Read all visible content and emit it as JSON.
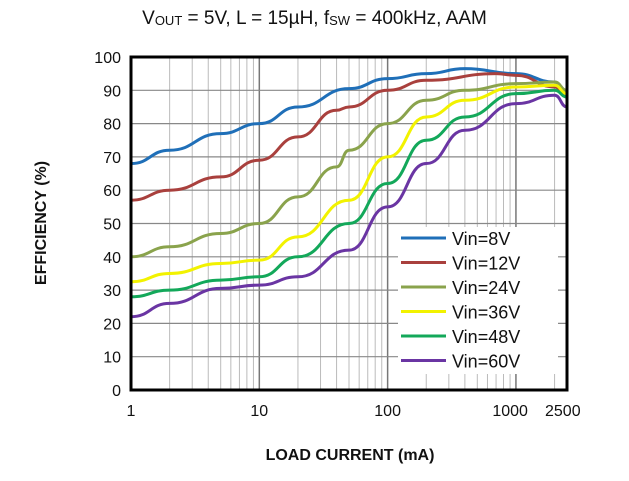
{
  "chart_data": {
    "type": "line",
    "title": {
      "v": "V",
      "v_sub": "OUT",
      "part1": " = 5V, L = 15µH, f",
      "f_sub": "SW",
      "part2": " = 400kHz, AAM"
    },
    "xlabel": "LOAD CURRENT  (mA)",
    "ylabel": "EFFICIENCY  (%)",
    "x_scale": "log",
    "xlim": [
      1,
      2500
    ],
    "ylim": [
      0,
      100
    ],
    "grid": true,
    "legend_position": "bottom-right",
    "x_ticks": [
      {
        "v": 1,
        "label": "1"
      },
      {
        "v": 10,
        "label": "10"
      },
      {
        "v": 100,
        "label": "100"
      },
      {
        "v": 1000,
        "label": "1000"
      },
      {
        "v": 2500,
        "label": "2500"
      }
    ],
    "y_ticks": [
      0,
      10,
      20,
      30,
      40,
      50,
      60,
      70,
      80,
      90,
      100
    ],
    "series": [
      {
        "name": "Vin=8V",
        "color": "#1f6fb8",
        "x": [
          1,
          2,
          5,
          10,
          20,
          50,
          100,
          200,
          400,
          1000,
          2000,
          2500
        ],
        "y": [
          68,
          72,
          77,
          80,
          85,
          90.5,
          93.5,
          95,
          96.5,
          95,
          92.5,
          89
        ]
      },
      {
        "name": "Vin=12V",
        "color": "#a9403d",
        "x": [
          1,
          2,
          5,
          10,
          20,
          40,
          50,
          100,
          200,
          700,
          1000,
          2000,
          2500
        ],
        "y": [
          57,
          60,
          64,
          69,
          76,
          84,
          85,
          90,
          93,
          95,
          94.5,
          91,
          88
        ]
      },
      {
        "name": "Vin=24V",
        "color": "#8aa34c",
        "x": [
          1,
          2,
          5,
          10,
          20,
          40,
          50,
          100,
          200,
          400,
          1000,
          2000,
          2500
        ],
        "y": [
          40,
          43,
          47,
          50,
          58,
          67,
          72,
          80,
          87,
          90,
          92,
          92.5,
          90
        ]
      },
      {
        "name": "Vin=36V",
        "color": "#f2f200",
        "x": [
          1,
          2,
          5,
          10,
          20,
          50,
          100,
          200,
          400,
          1000,
          2000,
          2500
        ],
        "y": [
          32.5,
          35,
          38,
          39,
          46,
          57,
          70,
          82,
          87,
          91,
          91.5,
          89
        ]
      },
      {
        "name": "Vin=48V",
        "color": "#13a85a",
        "x": [
          1,
          2,
          5,
          10,
          20,
          50,
          100,
          200,
          400,
          1000,
          2000,
          2500
        ],
        "y": [
          28,
          30,
          33,
          34,
          40,
          50,
          62,
          75,
          82,
          89,
          90,
          88
        ]
      },
      {
        "name": "Vin=60V",
        "color": "#6a35a3",
        "x": [
          1,
          2,
          5,
          10,
          20,
          50,
          100,
          200,
          400,
          1000,
          2000,
          2500
        ],
        "y": [
          22,
          26,
          30.5,
          31.5,
          34,
          42,
          55,
          68,
          78,
          86,
          88.5,
          85
        ]
      }
    ]
  }
}
